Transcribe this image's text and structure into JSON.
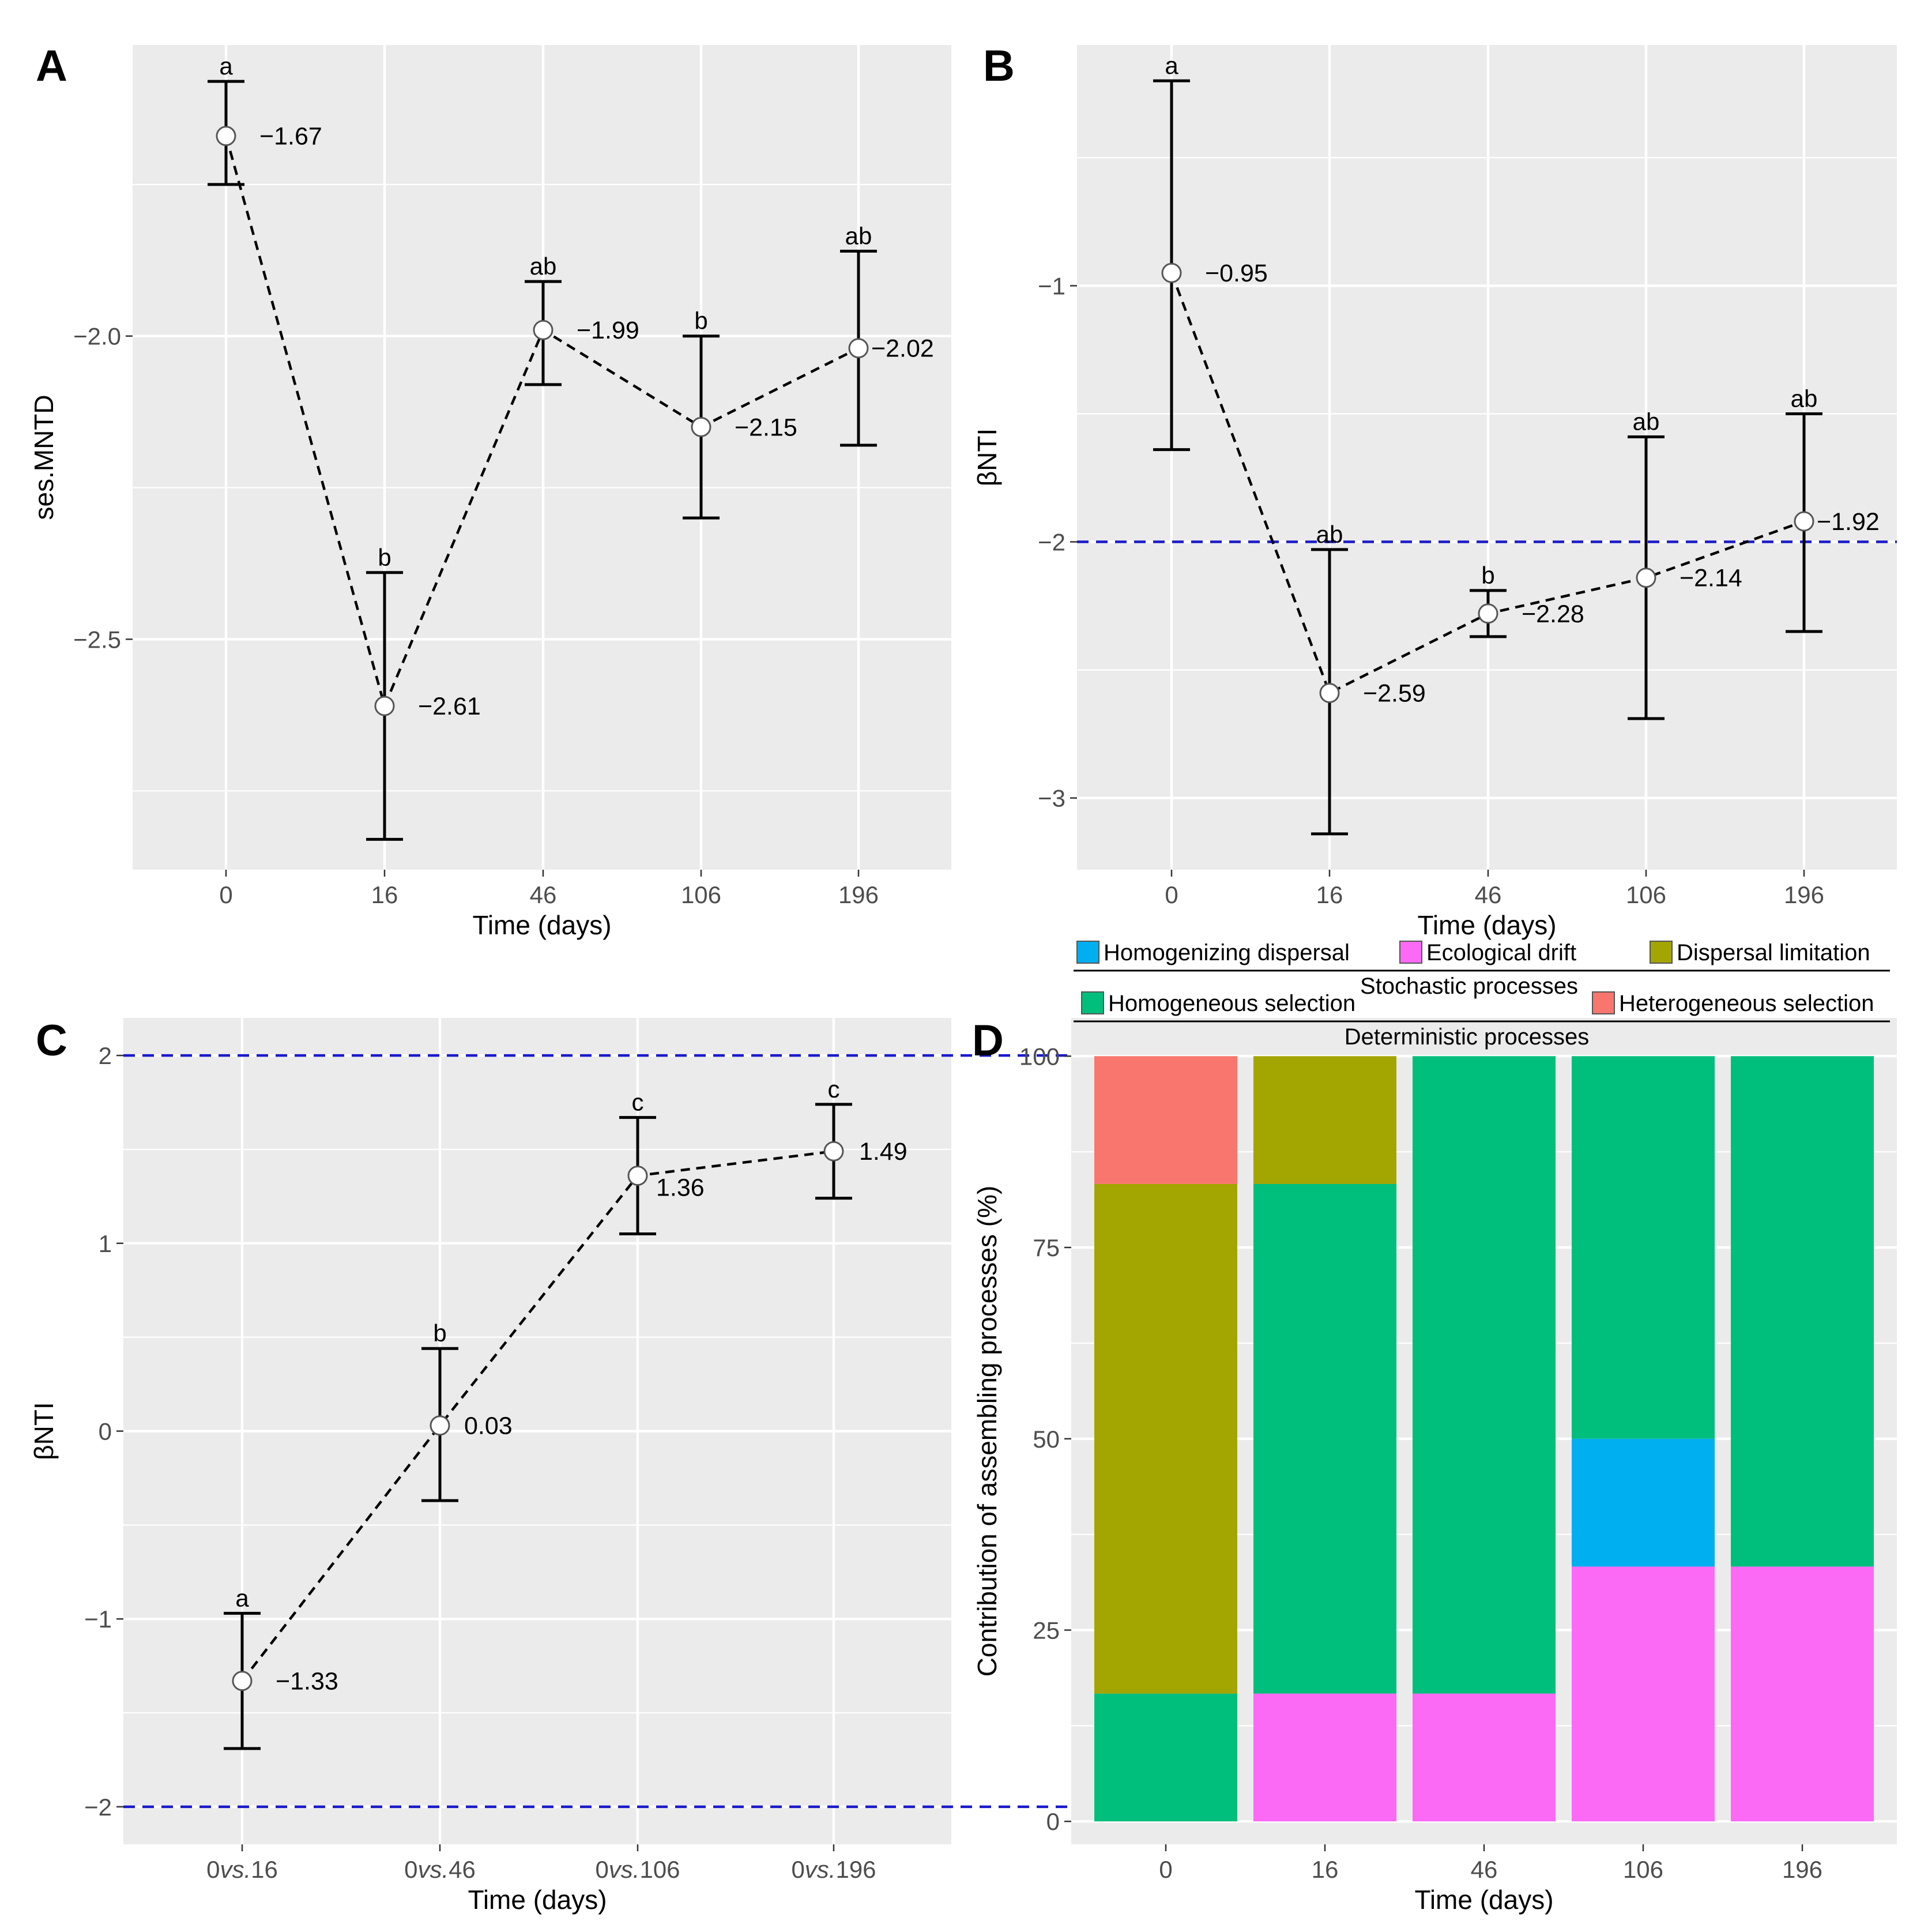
{
  "chart_data": [
    {
      "panel": "A",
      "type": "line",
      "xlabel": "Time (days)",
      "ylabel": "ses.MNTD",
      "categories": [
        "0",
        "16",
        "46",
        "106",
        "196"
      ],
      "values": [
        -1.67,
        -2.61,
        -1.99,
        -2.15,
        -2.02
      ],
      "value_labels": [
        "−1.67",
        "−2.61",
        "−1.99",
        "−2.15",
        "−2.02"
      ],
      "error_low": [
        -1.75,
        -2.83,
        -2.08,
        -2.3,
        -2.18
      ],
      "error_high": [
        -1.58,
        -2.39,
        -1.91,
        -2.0,
        -1.86
      ],
      "significance": [
        "a",
        "b",
        "ab",
        "b",
        "ab"
      ],
      "yticks": [
        -2.0,
        -2.5
      ],
      "ytick_labels": [
        "−2.0",
        "−2.5"
      ],
      "ylim": [
        -2.88,
        -1.52
      ],
      "reference_lines": [],
      "grid": true
    },
    {
      "panel": "B",
      "type": "line",
      "xlabel": "Time (days)",
      "ylabel": "βNTI",
      "categories": [
        "0",
        "16",
        "46",
        "106",
        "196"
      ],
      "values": [
        -0.95,
        -2.59,
        -2.28,
        -2.14,
        -1.92
      ],
      "value_labels": [
        "−0.95",
        "−2.59",
        "−2.28",
        "−2.14",
        "−1.92"
      ],
      "error_low": [
        -1.64,
        -3.14,
        -2.37,
        -2.69,
        -2.35
      ],
      "error_high": [
        -0.2,
        -2.03,
        -2.19,
        -1.59,
        -1.5
      ],
      "significance": [
        "a",
        "ab",
        "b",
        "ab",
        "ab"
      ],
      "yticks": [
        -1,
        -2,
        -3
      ],
      "ytick_labels": [
        "−1",
        "−2",
        "−3"
      ],
      "ylim": [
        -3.28,
        -0.06
      ],
      "reference_lines": [
        -2
      ],
      "grid": true
    },
    {
      "panel": "C",
      "type": "line",
      "xlabel": "Time (days)",
      "ylabel": "βNTI",
      "categories": [
        "0vs.16",
        "0vs.46",
        "0vs.106",
        "0vs.196"
      ],
      "category_parts": [
        [
          "0",
          "vs.",
          "16"
        ],
        [
          "0",
          "vs.",
          "46"
        ],
        [
          "0",
          "vs.",
          "106"
        ],
        [
          "0",
          "vs.",
          "196"
        ]
      ],
      "values": [
        -1.33,
        0.03,
        1.36,
        1.49
      ],
      "value_labels": [
        "−1.33",
        "0.03",
        "1.36",
        "1.49"
      ],
      "error_low": [
        -1.69,
        -0.37,
        1.05,
        1.24
      ],
      "error_high": [
        -0.97,
        0.44,
        1.67,
        1.74
      ],
      "significance": [
        "a",
        "b",
        "c",
        "c"
      ],
      "yticks": [
        2,
        1,
        0,
        -1,
        -2
      ],
      "ytick_labels": [
        "2",
        "1",
        "0",
        "−1",
        "−2"
      ],
      "ylim": [
        -2.2,
        2.2
      ],
      "reference_lines": [
        2,
        -2
      ],
      "grid": true
    },
    {
      "panel": "D",
      "type": "bar",
      "stacked": true,
      "xlabel": "Time (days)",
      "ylabel": "Contribution of assembling processes (%)",
      "categories": [
        "0",
        "16",
        "46",
        "106",
        "196"
      ],
      "series": [
        {
          "name": "Homogeneous selection",
          "color": "#00be7c",
          "values": [
            16.7,
            0,
            0,
            0,
            0
          ]
        },
        {
          "name": "Ecological drift",
          "color": "#fb6af5",
          "values": [
            0,
            16.7,
            16.7,
            33.3,
            33.3
          ]
        },
        {
          "name": "Homogenizing dispersal",
          "color": "#00aff0",
          "values": [
            0,
            0,
            0,
            16.7,
            0
          ]
        },
        {
          "name": "Homogeneous selection",
          "color": "#00be7c",
          "values": [
            0,
            66.6,
            83.3,
            50.0,
            66.7
          ]
        },
        {
          "name": "Dispersal limitation",
          "color": "#a3a500",
          "values": [
            66.6,
            16.7,
            0,
            0,
            0
          ]
        },
        {
          "name": "Heterogeneous selection",
          "color": "#f8766d",
          "values": [
            16.7,
            0,
            0,
            0,
            0
          ]
        }
      ],
      "yticks": [
        0,
        25,
        50,
        75,
        100
      ],
      "ytick_labels": [
        "0",
        "25",
        "50",
        "75",
        "100"
      ],
      "ylim": [
        -3,
        105
      ],
      "grid": true
    }
  ],
  "legend": {
    "stochastic": {
      "title": "Stochastic processes",
      "items": [
        {
          "label": "Homogenizing dispersal",
          "color": "#00aff0"
        },
        {
          "label": "Ecological drift",
          "color": "#fb6af5"
        },
        {
          "label": "Dispersal limitation",
          "color": "#a3a500"
        }
      ]
    },
    "deterministic": {
      "title": "Deterministic processes",
      "items": [
        {
          "label": "Homogeneous selection",
          "color": "#00be7c"
        },
        {
          "label": "Heterogeneous selection",
          "color": "#f8766d"
        }
      ]
    }
  },
  "colors": {
    "panel_background": "#ebebeb",
    "reference_line": "#1a1acc"
  }
}
